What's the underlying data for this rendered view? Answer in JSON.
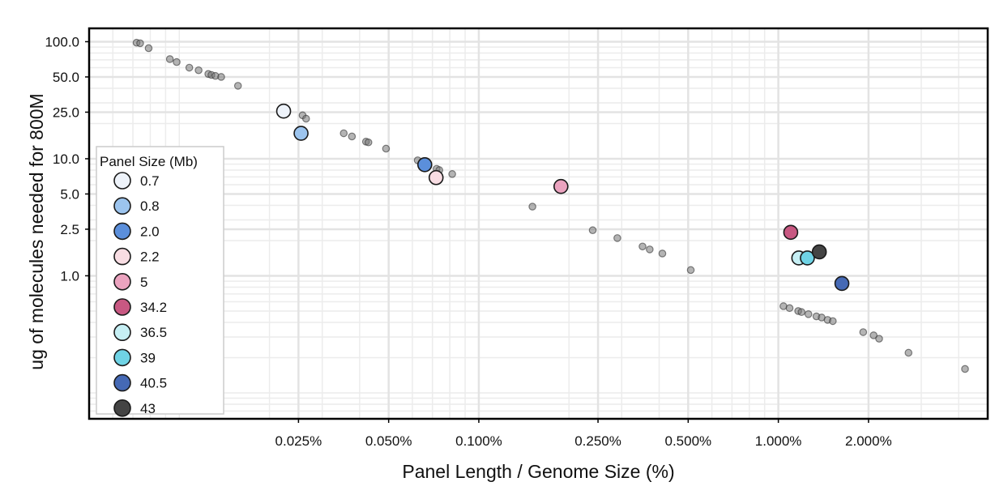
{
  "chart_data": {
    "type": "scatter",
    "xlabel": "Panel Length / Genome Size (%)",
    "ylabel": "ug of molecules needed for 800M",
    "x_scale": "log",
    "y_scale": "log",
    "xlim": [
      0.005,
      5.0
    ],
    "ylim": [
      0.06,
      130
    ],
    "x_ticks": [
      0.025,
      0.05,
      0.1,
      0.25,
      0.5,
      1.0,
      2.0
    ],
    "x_tick_labels": [
      "0.025%",
      "0.050%",
      "0.100%",
      "0.250%",
      "0.500%",
      "1.000%",
      "2.000%"
    ],
    "y_ticks": [
      100,
      50,
      25,
      10,
      5,
      2.5,
      1
    ],
    "y_tick_labels": [
      "100.0",
      "50.0",
      "25.0",
      "10.0",
      "5.0",
      "2.5",
      "1.0"
    ],
    "grid": true,
    "legend_title": "Panel Size (Mb)",
    "legend_position": "left",
    "background_points": {
      "color": "#777777",
      "x": [
        0.0072,
        0.0074,
        0.0079,
        0.0093,
        0.0098,
        0.0108,
        0.0116,
        0.0125,
        0.0128,
        0.0132,
        0.0138,
        0.0157,
        0.0258,
        0.0265,
        0.0354,
        0.0377,
        0.042,
        0.0428,
        0.049,
        0.0625,
        0.0648,
        0.0723,
        0.0738,
        0.0815,
        0.151,
        0.24,
        0.29,
        0.352,
        0.372,
        0.41,
        0.51,
        1.04,
        1.09,
        1.165,
        1.195,
        1.26,
        1.34,
        1.395,
        1.46,
        1.52,
        1.92,
        2.08,
        2.17,
        2.72,
        4.2
      ],
      "y": [
        98.0,
        97.0,
        88.0,
        71.0,
        67.0,
        60.0,
        57.0,
        53.0,
        52.0,
        51.0,
        50.0,
        42.0,
        23.5,
        22.0,
        16.5,
        15.5,
        14.0,
        13.8,
        12.2,
        9.7,
        9.4,
        8.2,
        8.0,
        7.4,
        3.9,
        2.45,
        2.1,
        1.78,
        1.68,
        1.55,
        1.12,
        0.55,
        0.53,
        0.5,
        0.49,
        0.47,
        0.45,
        0.44,
        0.42,
        0.41,
        0.33,
        0.31,
        0.29,
        0.22,
        0.16
      ]
    },
    "series": [
      {
        "name": "0.7",
        "color": "#EEF3FA",
        "x": [
          0.0223
        ],
        "y": [
          25.5
        ]
      },
      {
        "name": "0.8",
        "color": "#9CC4EE",
        "x": [
          0.0255
        ],
        "y": [
          16.5
        ]
      },
      {
        "name": "2.0",
        "color": "#5B8FDB",
        "x": [
          0.066
        ],
        "y": [
          8.9
        ]
      },
      {
        "name": "2.2",
        "color": "#F8DDE3",
        "x": [
          0.072
        ],
        "y": [
          6.9
        ]
      },
      {
        "name": "5",
        "color": "#EBA3BF",
        "x": [
          0.188
        ],
        "y": [
          5.8
        ]
      },
      {
        "name": "34.2",
        "color": "#C85882",
        "x": [
          1.1
        ],
        "y": [
          2.35
        ]
      },
      {
        "name": "36.5",
        "color": "#C6EFF4",
        "x": [
          1.17
        ],
        "y": [
          1.42
        ]
      },
      {
        "name": "39",
        "color": "#6FD3E5",
        "x": [
          1.25
        ],
        "y": [
          1.42
        ]
      },
      {
        "name": "40.5",
        "color": "#4569B5",
        "x": [
          1.63
        ],
        "y": [
          0.86
        ]
      },
      {
        "name": "43",
        "color": "#444444",
        "x": [
          1.37
        ],
        "y": [
          1.6
        ]
      }
    ]
  }
}
